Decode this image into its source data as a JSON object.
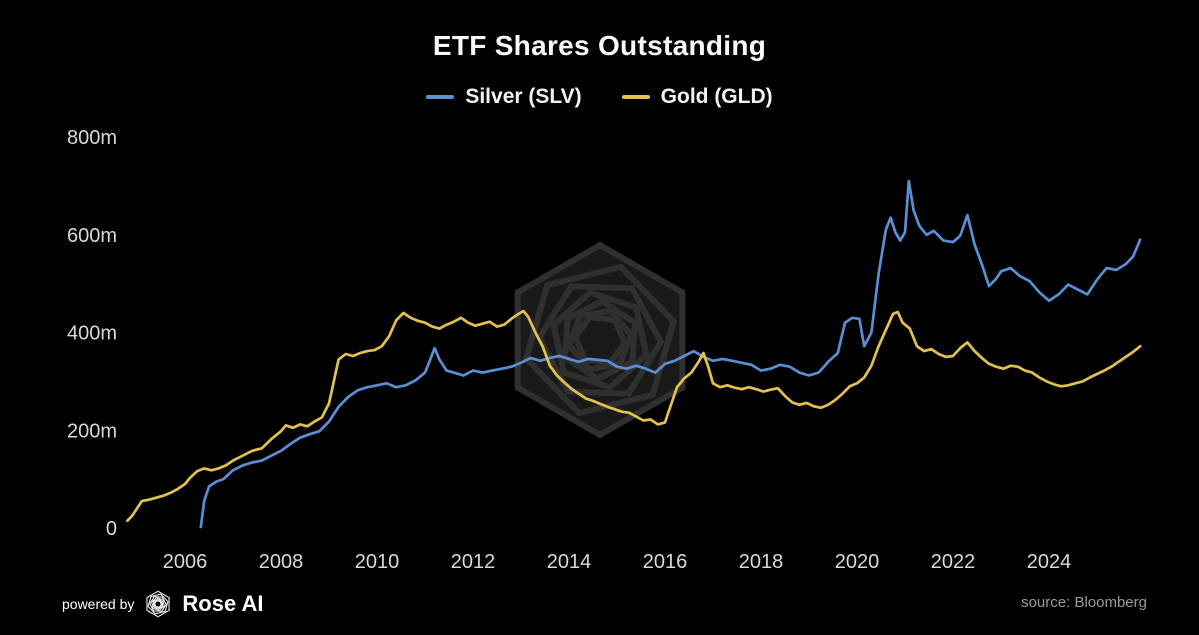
{
  "chart_data": {
    "type": "line",
    "title": "ETF Shares Outstanding",
    "xlabel": "",
    "ylabel": "",
    "ylim": [
      0,
      800
    ],
    "xlim": [
      2004.8,
      2026.0
    ],
    "grid": false,
    "legend_position": "top-center",
    "background": "#000000",
    "x_ticks": [
      2006,
      2008,
      2010,
      2012,
      2014,
      2016,
      2018,
      2020,
      2022,
      2024
    ],
    "y_ticks": [
      {
        "label": "800m",
        "value": 800
      },
      {
        "label": "600m",
        "value": 600
      },
      {
        "label": "400m",
        "value": 400
      },
      {
        "label": "200m",
        "value": 200
      },
      {
        "label": "0",
        "value": 0
      }
    ],
    "series": [
      {
        "id": "silver-slv",
        "name": "Silver (SLV)",
        "color": "#5b8fd4",
        "x": [
          2006.33,
          2006.4,
          2006.5,
          2006.65,
          2006.8,
          2007.0,
          2007.2,
          2007.4,
          2007.6,
          2007.8,
          2008.0,
          2008.2,
          2008.4,
          2008.6,
          2008.8,
          2009.0,
          2009.2,
          2009.4,
          2009.6,
          2009.8,
          2010.0,
          2010.2,
          2010.4,
          2010.6,
          2010.8,
          2011.0,
          2011.1,
          2011.2,
          2011.3,
          2011.45,
          2011.6,
          2011.8,
          2012.0,
          2012.2,
          2012.4,
          2012.6,
          2012.8,
          2013.0,
          2013.2,
          2013.4,
          2013.6,
          2013.8,
          2014.0,
          2014.2,
          2014.4,
          2014.6,
          2014.8,
          2015.0,
          2015.2,
          2015.4,
          2015.6,
          2015.8,
          2016.0,
          2016.2,
          2016.4,
          2016.6,
          2016.8,
          2017.0,
          2017.2,
          2017.4,
          2017.6,
          2017.8,
          2018.0,
          2018.2,
          2018.4,
          2018.6,
          2018.8,
          2019.0,
          2019.2,
          2019.4,
          2019.6,
          2019.75,
          2019.9,
          2020.05,
          2020.15,
          2020.3,
          2020.45,
          2020.6,
          2020.7,
          2020.8,
          2020.9,
          2021.0,
          2021.08,
          2021.18,
          2021.3,
          2021.45,
          2021.6,
          2021.8,
          2022.0,
          2022.15,
          2022.3,
          2022.45,
          2022.6,
          2022.75,
          2022.9,
          2023.0,
          2023.2,
          2023.4,
          2023.6,
          2023.8,
          2024.0,
          2024.2,
          2024.4,
          2024.6,
          2024.8,
          2025.0,
          2025.2,
          2025.4,
          2025.6,
          2025.75,
          2025.9
        ],
        "y": [
          2,
          55,
          85,
          95,
          100,
          118,
          128,
          134,
          138,
          148,
          158,
          172,
          185,
          192,
          198,
          218,
          248,
          268,
          282,
          288,
          292,
          296,
          288,
          292,
          302,
          318,
          342,
          368,
          345,
          322,
          318,
          312,
          322,
          318,
          322,
          326,
          330,
          338,
          348,
          342,
          348,
          352,
          346,
          340,
          346,
          344,
          342,
          330,
          326,
          332,
          326,
          318,
          336,
          342,
          352,
          362,
          350,
          342,
          346,
          342,
          338,
          334,
          322,
          326,
          334,
          330,
          318,
          312,
          318,
          340,
          358,
          420,
          430,
          428,
          372,
          400,
          520,
          610,
          635,
          605,
          588,
          605,
          710,
          650,
          618,
          600,
          608,
          588,
          585,
          598,
          640,
          580,
          540,
          495,
          510,
          525,
          532,
          515,
          505,
          482,
          465,
          478,
          498,
          488,
          478,
          508,
          532,
          528,
          540,
          555,
          590
        ]
      },
      {
        "id": "gold-gld",
        "name": "Gold (GLD)",
        "color": "#e2c24d",
        "x": [
          2004.8,
          2004.9,
          2005.0,
          2005.1,
          2005.25,
          2005.4,
          2005.55,
          2005.7,
          2005.85,
          2006.0,
          2006.1,
          2006.25,
          2006.4,
          2006.55,
          2006.7,
          2006.85,
          2007.0,
          2007.2,
          2007.4,
          2007.6,
          2007.8,
          2008.0,
          2008.1,
          2008.25,
          2008.4,
          2008.55,
          2008.7,
          2008.85,
          2009.0,
          2009.1,
          2009.2,
          2009.35,
          2009.5,
          2009.65,
          2009.8,
          2009.95,
          2010.1,
          2010.25,
          2010.4,
          2010.55,
          2010.7,
          2010.85,
          2011.0,
          2011.15,
          2011.3,
          2011.45,
          2011.6,
          2011.75,
          2011.9,
          2012.05,
          2012.2,
          2012.35,
          2012.5,
          2012.65,
          2012.8,
          2012.95,
          2013.05,
          2013.15,
          2013.3,
          2013.45,
          2013.6,
          2013.75,
          2013.9,
          2014.05,
          2014.2,
          2014.35,
          2014.5,
          2014.65,
          2014.8,
          2014.95,
          2015.1,
          2015.25,
          2015.4,
          2015.55,
          2015.7,
          2015.85,
          2016.0,
          2016.1,
          2016.25,
          2016.4,
          2016.55,
          2016.7,
          2016.8,
          2016.9,
          2017.0,
          2017.15,
          2017.3,
          2017.45,
          2017.6,
          2017.75,
          2017.9,
          2018.05,
          2018.2,
          2018.35,
          2018.5,
          2018.65,
          2018.8,
          2018.95,
          2019.1,
          2019.25,
          2019.4,
          2019.55,
          2019.7,
          2019.85,
          2020.0,
          2020.15,
          2020.3,
          2020.45,
          2020.6,
          2020.75,
          2020.85,
          2020.95,
          2021.1,
          2021.25,
          2021.4,
          2021.55,
          2021.7,
          2021.85,
          2022.0,
          2022.15,
          2022.3,
          2022.45,
          2022.6,
          2022.75,
          2022.9,
          2023.05,
          2023.2,
          2023.35,
          2023.5,
          2023.65,
          2023.8,
          2023.95,
          2024.1,
          2024.25,
          2024.4,
          2024.55,
          2024.7,
          2024.85,
          2025.0,
          2025.15,
          2025.3,
          2025.45,
          2025.6,
          2025.75,
          2025.9
        ],
        "y": [
          15,
          25,
          40,
          55,
          58,
          62,
          66,
          72,
          80,
          90,
          102,
          116,
          122,
          118,
          122,
          128,
          138,
          148,
          158,
          163,
          182,
          198,
          210,
          205,
          212,
          208,
          218,
          226,
          255,
          300,
          345,
          356,
          352,
          358,
          362,
          364,
          372,
          392,
          425,
          440,
          430,
          424,
          420,
          412,
          408,
          416,
          422,
          430,
          420,
          414,
          418,
          422,
          412,
          416,
          428,
          438,
          444,
          432,
          400,
          372,
          332,
          312,
          298,
          285,
          275,
          265,
          260,
          254,
          248,
          243,
          238,
          236,
          228,
          220,
          222,
          212,
          216,
          245,
          288,
          306,
          318,
          340,
          358,
          330,
          296,
          288,
          292,
          287,
          284,
          288,
          284,
          279,
          283,
          286,
          270,
          257,
          252,
          256,
          249,
          246,
          252,
          262,
          275,
          290,
          296,
          308,
          332,
          372,
          405,
          438,
          442,
          420,
          408,
          372,
          362,
          366,
          356,
          350,
          352,
          368,
          380,
          362,
          348,
          336,
          330,
          326,
          332,
          330,
          322,
          318,
          308,
          300,
          294,
          290,
          292,
          296,
          300,
          308,
          315,
          322,
          330,
          340,
          350,
          360,
          372
        ]
      }
    ]
  },
  "footer": {
    "powered_by": "powered by",
    "brand": "Rose AI",
    "source": "source: Bloomberg"
  }
}
